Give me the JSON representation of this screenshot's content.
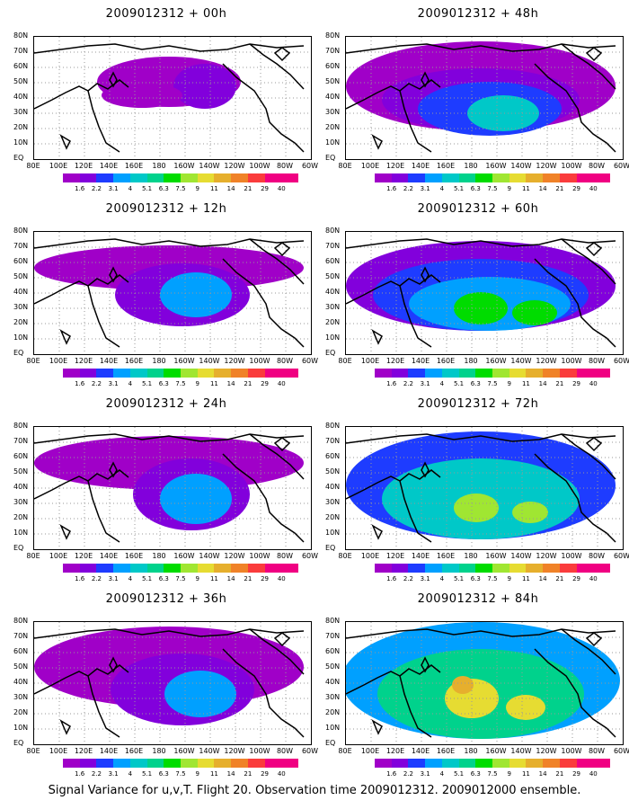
{
  "panels": [
    {
      "title": "2009012312 + 00h"
    },
    {
      "title": "2009012312 + 48h"
    },
    {
      "title": "2009012312 + 12h"
    },
    {
      "title": "2009012312 + 60h"
    },
    {
      "title": "2009012312 + 24h"
    },
    {
      "title": "2009012312 + 72h"
    },
    {
      "title": "2009012312 + 36h"
    },
    {
      "title": "2009012312 + 84h"
    }
  ],
  "axes": {
    "x_ticks": [
      "80E",
      "100E",
      "120E",
      "140E",
      "160E",
      "180",
      "160W",
      "140W",
      "120W",
      "100W",
      "80W",
      "60W"
    ],
    "y_ticks": [
      "80N",
      "70N",
      "60N",
      "50N",
      "40N",
      "30N",
      "20N",
      "10N",
      "EQ"
    ]
  },
  "colorbar": {
    "labels": [
      "1.6",
      "2.2",
      "3.1",
      "4",
      "5.1",
      "6.3",
      "7.5",
      "9",
      "11",
      "14",
      "21",
      "29",
      "40"
    ],
    "colors": [
      "#a000c8",
      "#8200dc",
      "#1e3cff",
      "#00a0ff",
      "#00c8c8",
      "#00d28c",
      "#00dc00",
      "#a0e632",
      "#e6dc32",
      "#e6af2d",
      "#f08228",
      "#fa3c3c",
      "#f00082"
    ]
  },
  "footer": "Signal Variance for u,v,T. Flight 20. Observation time 2009012312. 2009012000 ensemble."
}
